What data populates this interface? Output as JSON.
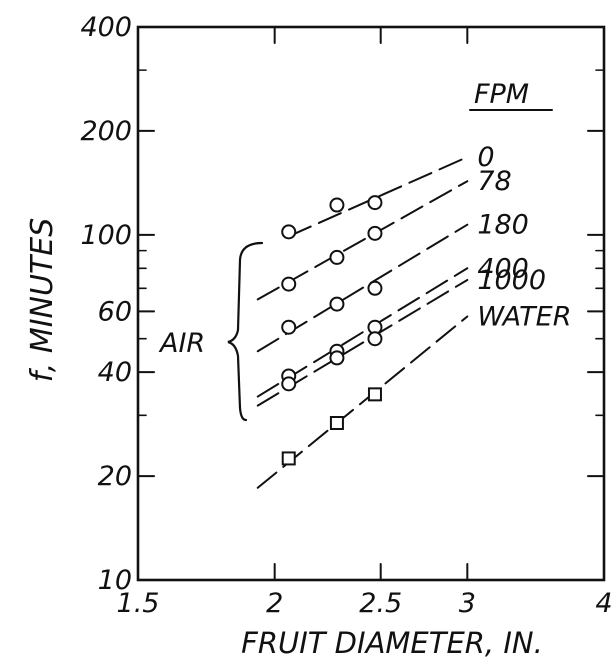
{
  "chart_data": {
    "type": "scatter",
    "title": "",
    "xlabel": "FRUIT DIAMETER, IN.",
    "ylabel": "f, MINUTES",
    "x_scale": "log",
    "y_scale": "log",
    "xlim": [
      1.5,
      4
    ],
    "ylim": [
      10,
      400
    ],
    "x_ticks": [
      1.5,
      2,
      2.5,
      3,
      4
    ],
    "x_tick_labels": [
      "1.5",
      "2",
      "2.5",
      "3",
      "4"
    ],
    "y_ticks": [
      10,
      20,
      40,
      60,
      100,
      200,
      400
    ],
    "y_tick_labels": [
      "10",
      "20",
      "40",
      "60",
      "100",
      "200",
      "400"
    ],
    "legend_title": "FPM",
    "bracket_label": "AIR",
    "series": [
      {
        "name": "0",
        "marker": "circle",
        "x": [
          2.06,
          2.28,
          2.47
        ],
        "y": [
          102,
          122,
          124
        ],
        "line_x": [
          2.06,
          3.0
        ],
        "line_y": [
          99,
          168
        ]
      },
      {
        "name": "78",
        "marker": "circle",
        "x": [
          2.06,
          2.28,
          2.47
        ],
        "y": [
          72,
          86,
          101
        ],
        "line_x": [
          1.93,
          3.0
        ],
        "line_y": [
          65,
          143
        ]
      },
      {
        "name": "180",
        "marker": "circle",
        "x": [
          2.06,
          2.28,
          2.47
        ],
        "y": [
          54,
          63,
          70
        ],
        "line_x": [
          1.93,
          3.0
        ],
        "line_y": [
          46,
          107
        ]
      },
      {
        "name": "400",
        "marker": "circle",
        "x": [
          2.06,
          2.28,
          2.47
        ],
        "y": [
          39,
          46,
          54
        ],
        "line_x": [
          1.93,
          3.0
        ],
        "line_y": [
          34,
          80
        ]
      },
      {
        "name": "1000",
        "marker": "circle",
        "x": [
          2.06,
          2.28,
          2.47
        ],
        "y": [
          37,
          44,
          50
        ],
        "line_x": [
          1.93,
          3.0
        ],
        "line_y": [
          32,
          74
        ]
      },
      {
        "name": "WATER",
        "marker": "square",
        "x": [
          2.06,
          2.28,
          2.47
        ],
        "y": [
          22.5,
          28.5,
          34.5
        ],
        "line_x": [
          1.93,
          3.0
        ],
        "line_y": [
          18.5,
          58
        ]
      }
    ]
  }
}
